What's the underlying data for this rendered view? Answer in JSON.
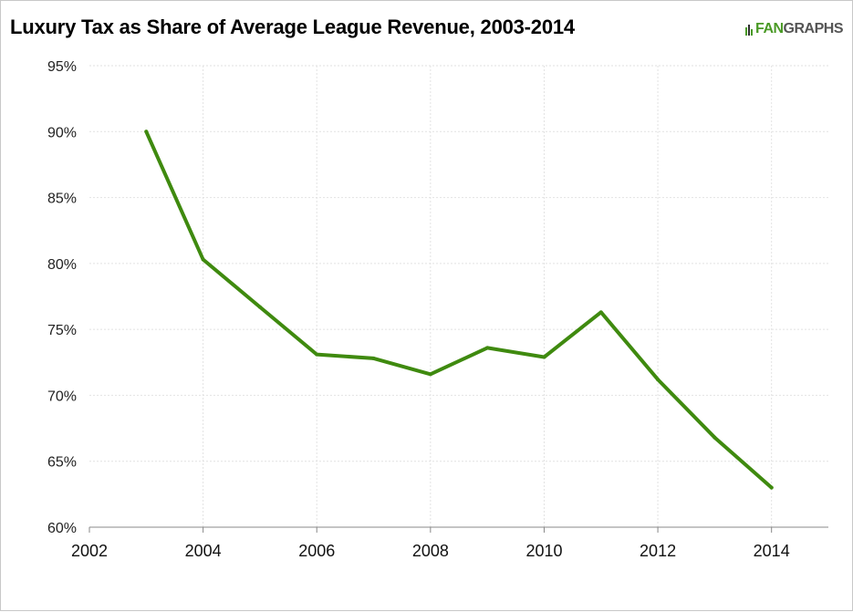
{
  "chart_data": {
    "type": "line",
    "title": "Luxury Tax as Share of Average League Revenue, 2003-2014",
    "xlabel": "",
    "ylabel": "",
    "xlim": [
      2002,
      2015
    ],
    "ylim": [
      60,
      95
    ],
    "x_ticks": [
      "2002",
      "2004",
      "2006",
      "2008",
      "2010",
      "2012",
      "2014"
    ],
    "y_ticks": [
      "60%",
      "65%",
      "70%",
      "75%",
      "80%",
      "85%",
      "90%",
      "95%"
    ],
    "grid": true,
    "legend": "none",
    "series": [
      {
        "color": "#3f8a0f",
        "x": [
          2003,
          2004,
          2005,
          2006,
          2007,
          2008,
          2009,
          2010,
          2011,
          2012,
          2013,
          2014
        ],
        "y": [
          90.0,
          80.3,
          76.7,
          73.1,
          72.8,
          71.6,
          73.6,
          72.9,
          76.3,
          71.2,
          66.8,
          63.0
        ]
      }
    ]
  },
  "branding": {
    "logo_fan": "FAN",
    "logo_graphs": "GRAPHS"
  },
  "colors": {
    "line": "#3f8a0f",
    "grid": "#e2e2e2",
    "axis": "#888888",
    "logo_green": "#4a9a26"
  }
}
